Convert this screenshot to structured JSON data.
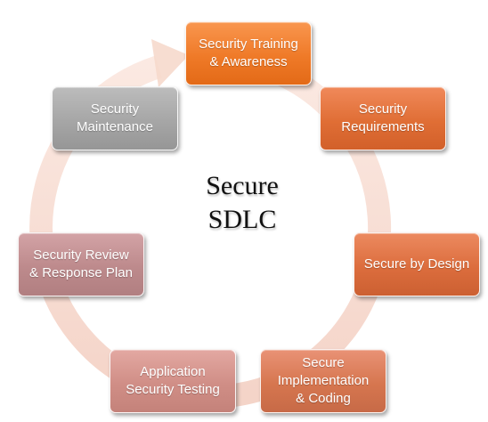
{
  "diagram": {
    "center_title": "Secure\nSDLC",
    "steps": [
      {
        "label": "Security Training\n& Awareness",
        "color": "#ef7a28"
      },
      {
        "label": "Security\nRequirements",
        "color": "#e06e35"
      },
      {
        "label": "Secure by Design",
        "color": "#dc6d3d"
      },
      {
        "label": "Secure\nImplementation\n& Coding",
        "color": "#d6764f"
      },
      {
        "label": "Application\nSecurity Testing",
        "color": "#d08e86"
      },
      {
        "label": "Security Review\n& Response Plan",
        "color": "#bd8a8c"
      },
      {
        "label": "Security\nMaintenance",
        "color": "#a6a6a6"
      }
    ],
    "ring_color": "#f6d9cc"
  }
}
